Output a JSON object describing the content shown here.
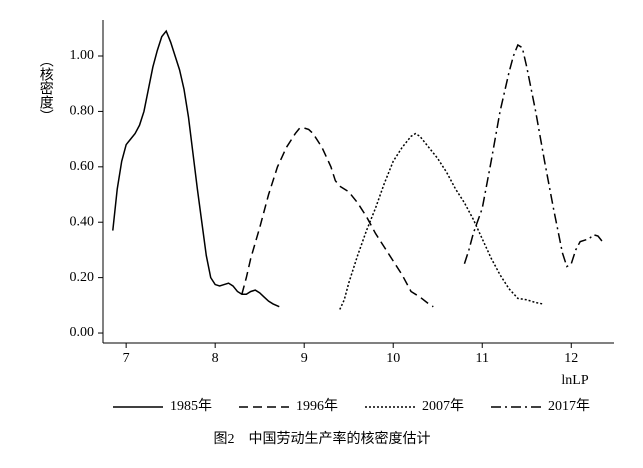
{
  "chart_data": {
    "type": "line",
    "y_label": "（核密度）",
    "x_label": "lnLP",
    "caption": "图2　中国劳动生产率的核密度估计",
    "xlim": [
      6.74,
      12.48
    ],
    "ylim": [
      -0.036,
      1.13
    ],
    "xticks": [
      7,
      8,
      9,
      10,
      11,
      12
    ],
    "yticks": [
      {
        "value": 0,
        "label": "0.00"
      },
      {
        "value": 0.2,
        "label": "0.20"
      },
      {
        "value": 0.4,
        "label": "0.40"
      },
      {
        "value": 0.6,
        "label": "0.60"
      },
      {
        "value": 0.8,
        "label": "0.80"
      },
      {
        "value": 1,
        "label": "1.00"
      }
    ],
    "grid": false,
    "legend": "bottom",
    "series": [
      {
        "name": "1985年",
        "color": "#000000",
        "dash": "solid",
        "x": [
          6.85,
          6.9,
          6.95,
          7.0,
          7.05,
          7.1,
          7.15,
          7.2,
          7.25,
          7.3,
          7.35,
          7.4,
          7.45,
          7.5,
          7.55,
          7.6,
          7.65,
          7.7,
          7.75,
          7.8,
          7.85,
          7.9,
          7.95,
          8.0,
          8.05,
          8.1,
          8.15,
          8.2,
          8.25,
          8.3,
          8.35,
          8.4,
          8.45,
          8.5,
          8.55,
          8.6,
          8.65,
          8.72
        ],
        "values": [
          0.37,
          0.52,
          0.62,
          0.68,
          0.7,
          0.72,
          0.75,
          0.8,
          0.88,
          0.96,
          1.02,
          1.07,
          1.09,
          1.05,
          1.0,
          0.95,
          0.88,
          0.78,
          0.65,
          0.52,
          0.4,
          0.28,
          0.2,
          0.175,
          0.17,
          0.175,
          0.18,
          0.17,
          0.15,
          0.14,
          0.14,
          0.15,
          0.155,
          0.145,
          0.13,
          0.115,
          0.105,
          0.095
        ]
      },
      {
        "name": "1996年",
        "color": "#000000",
        "dash": "dashed",
        "x": [
          8.3,
          8.35,
          8.4,
          8.5,
          8.6,
          8.7,
          8.8,
          8.9,
          8.95,
          9.0,
          9.05,
          9.1,
          9.2,
          9.3,
          9.35,
          9.4,
          9.5,
          9.6,
          9.7,
          9.8,
          9.9,
          10.0,
          10.1,
          10.2,
          10.3,
          10.4,
          10.45
        ],
        "values": [
          0.14,
          0.2,
          0.27,
          0.38,
          0.5,
          0.6,
          0.67,
          0.72,
          0.74,
          0.74,
          0.735,
          0.72,
          0.67,
          0.6,
          0.55,
          0.53,
          0.51,
          0.47,
          0.42,
          0.36,
          0.31,
          0.26,
          0.21,
          0.15,
          0.13,
          0.105,
          0.095
        ]
      },
      {
        "name": "2007年",
        "color": "#000000",
        "dash": "dotted",
        "x": [
          9.4,
          9.45,
          9.5,
          9.6,
          9.7,
          9.8,
          9.9,
          10.0,
          10.1,
          10.2,
          10.25,
          10.3,
          10.4,
          10.5,
          10.6,
          10.7,
          10.8,
          10.9,
          11.0,
          11.1,
          11.2,
          11.3,
          11.4,
          11.5,
          11.6,
          11.68
        ],
        "values": [
          0.085,
          0.12,
          0.18,
          0.28,
          0.37,
          0.45,
          0.54,
          0.62,
          0.67,
          0.71,
          0.72,
          0.71,
          0.67,
          0.63,
          0.58,
          0.52,
          0.47,
          0.41,
          0.34,
          0.27,
          0.21,
          0.16,
          0.125,
          0.12,
          0.11,
          0.105
        ]
      },
      {
        "name": "2017年",
        "color": "#000000",
        "dash": "dashdot",
        "x": [
          10.8,
          10.85,
          10.9,
          11.0,
          11.1,
          11.2,
          11.3,
          11.35,
          11.4,
          11.45,
          11.5,
          11.6,
          11.7,
          11.8,
          11.9,
          11.95,
          12.0,
          12.05,
          12.1,
          12.2,
          12.25,
          12.3,
          12.35
        ],
        "values": [
          0.25,
          0.3,
          0.36,
          0.45,
          0.62,
          0.8,
          0.94,
          1.0,
          1.04,
          1.03,
          0.96,
          0.8,
          0.62,
          0.45,
          0.29,
          0.24,
          0.25,
          0.3,
          0.33,
          0.34,
          0.355,
          0.35,
          0.33
        ]
      }
    ]
  }
}
